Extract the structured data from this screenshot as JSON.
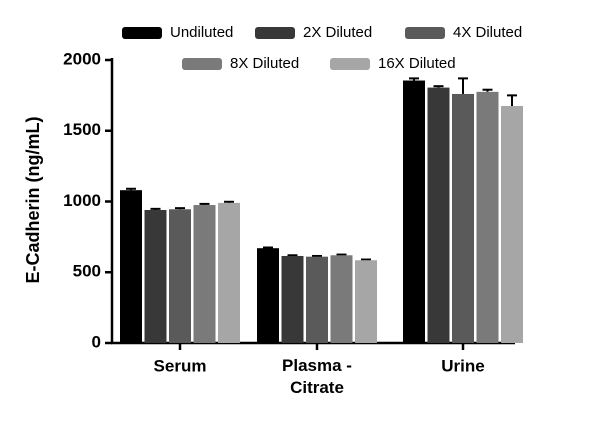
{
  "chart_data": {
    "type": "bar",
    "y_label": "E-Cadherin (ng/mL)",
    "categories": [
      "Serum",
      "Plasma - Citrate",
      "Urine"
    ],
    "series": [
      {
        "name": "Undiluted",
        "color": "#000000",
        "values": [
          1080,
          670,
          1855
        ],
        "errors": [
          10,
          5,
          15
        ]
      },
      {
        "name": "2X Diluted",
        "color": "#383838",
        "values": [
          940,
          615,
          1805
        ],
        "errors": [
          8,
          5,
          10
        ]
      },
      {
        "name": "4X Diluted",
        "color": "#5a5a5a",
        "values": [
          945,
          610,
          1760
        ],
        "errors": [
          8,
          5,
          110
        ]
      },
      {
        "name": "8X Diluted",
        "color": "#7a7a7a",
        "values": [
          975,
          620,
          1775
        ],
        "errors": [
          8,
          5,
          15
        ]
      },
      {
        "name": "16X Diluted",
        "color": "#a6a6a6",
        "values": [
          990,
          585,
          1675
        ],
        "errors": [
          8,
          5,
          75
        ]
      }
    ],
    "ylim": [
      0,
      2000
    ],
    "yticks": [
      0,
      500,
      1000,
      1500,
      2000
    ]
  }
}
